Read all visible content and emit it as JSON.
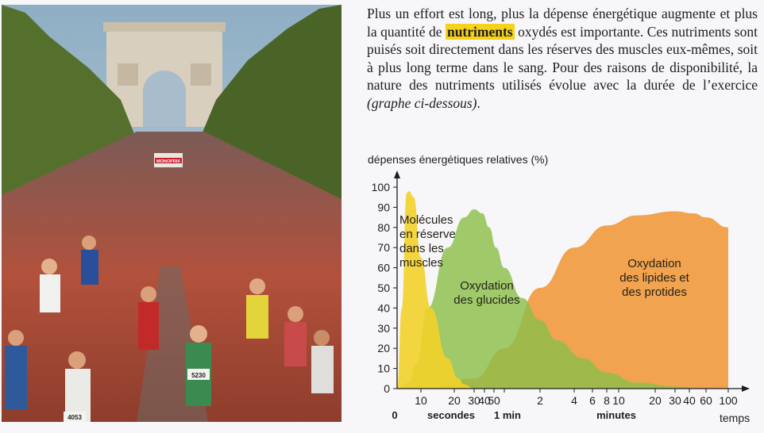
{
  "paragraph": {
    "part1": "Plus un effort est long, plus la dépense énergétique augmente et plus la quantité de ",
    "highlight": "nutriments",
    "part2": " oxydés est importante. Ces nutriments sont puisés soit directement dans les réserves des muscles eux-mêmes, soit à plus long terme dans le sang. Pour des raisons de disponibilité, la nature des nutriments utilisés évolue avec la durée de l’exercice ",
    "italic": "(graphe ci-dessous)",
    "end": "."
  },
  "photo": {
    "banner_text": "MONOPRIX",
    "bibs": [
      "5230",
      "4053"
    ],
    "colors": {
      "sky": "#9fb7c8",
      "trees": "#4f6a2a",
      "arch": "#d8cfbe",
      "road": "#6e6a66"
    }
  },
  "chart_data": {
    "type": "area",
    "ylabel": "dépenses énergétiques relatives (%)",
    "xlabel": "temps",
    "ylim": [
      0,
      100
    ],
    "yticks": [
      0,
      10,
      20,
      30,
      40,
      50,
      60,
      70,
      80,
      90,
      100
    ],
    "x_ticks": [
      {
        "label": "0",
        "bold": true
      },
      {
        "label": "10"
      },
      {
        "label": "20"
      },
      {
        "label": "30"
      },
      {
        "label": "40"
      },
      {
        "label": "50"
      },
      {
        "label": "1"
      },
      {
        "label": "2"
      },
      {
        "label": "4"
      },
      {
        "label": "6"
      },
      {
        "label": "8"
      },
      {
        "label": "10"
      },
      {
        "label": "20"
      },
      {
        "label": "30"
      },
      {
        "label": "40"
      },
      {
        "label": "60"
      },
      {
        "label": "100"
      }
    ],
    "unit_labels": {
      "seconds": "secondes",
      "minute": "1 min",
      "minutes": "minutes"
    },
    "series": [
      {
        "name": "Molécules en réserve dans les muscles",
        "label_lines": [
          "Molécules",
          "en réserve",
          "dans les",
          "muscles"
        ],
        "color": "#f2d12a",
        "points": [
          [
            0,
            0
          ],
          [
            2,
            40
          ],
          [
            4,
            97
          ],
          [
            5,
            98
          ],
          [
            7,
            95
          ],
          [
            10,
            65
          ],
          [
            13,
            40
          ],
          [
            18,
            15
          ],
          [
            22,
            5
          ],
          [
            25,
            2
          ],
          [
            30,
            0
          ]
        ]
      },
      {
        "name": "Oxydation des glucides",
        "label_lines": [
          "Oxydation",
          "des glucides"
        ],
        "color": "#8cc04a",
        "points": [
          [
            0,
            0
          ],
          [
            5,
            3
          ],
          [
            8,
            12
          ],
          [
            12,
            40
          ],
          [
            18,
            70
          ],
          [
            25,
            85
          ],
          [
            30,
            89
          ],
          [
            38,
            87
          ],
          [
            45,
            80
          ],
          [
            52,
            70
          ],
          [
            60,
            60
          ],
          [
            90,
            45
          ],
          [
            120,
            34
          ],
          [
            180,
            24
          ],
          [
            300,
            15
          ],
          [
            480,
            8
          ],
          [
            900,
            3
          ],
          [
            1800,
            1
          ],
          [
            3600,
            0
          ],
          [
            6000,
            0
          ]
        ]
      },
      {
        "name": "Oxydation des lipides et des protides",
        "label_lines": [
          "Oxydation",
          "des lipides et",
          "des protides"
        ],
        "color": "#f0902a",
        "points": [
          [
            10,
            0
          ],
          [
            30,
            5
          ],
          [
            60,
            20
          ],
          [
            120,
            50
          ],
          [
            240,
            70
          ],
          [
            480,
            81
          ],
          [
            900,
            86
          ],
          [
            1800,
            88
          ],
          [
            2700,
            87
          ],
          [
            3600,
            85
          ],
          [
            6000,
            80
          ]
        ]
      }
    ]
  }
}
